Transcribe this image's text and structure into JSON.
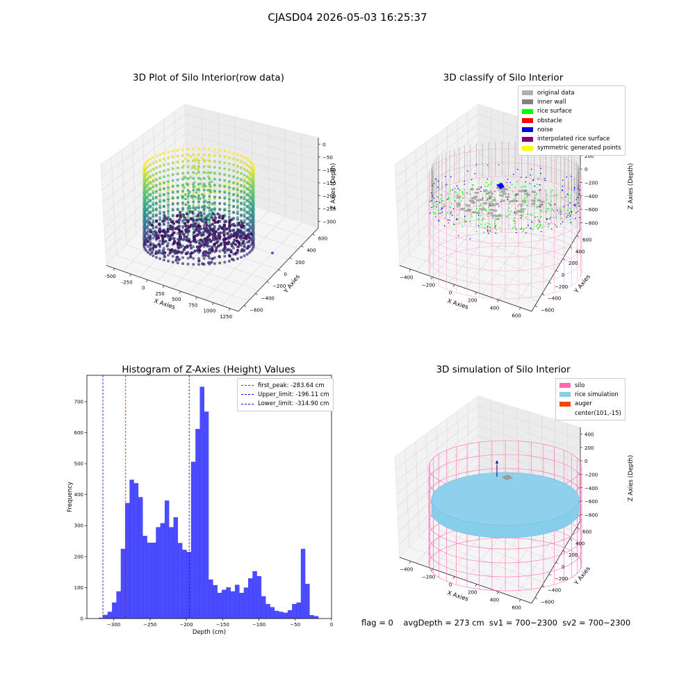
{
  "figure": {
    "suptitle": "CJASD04 2026-05-03 16:25:37",
    "footer": "flag = 0    avgDepth = 273 cm  sv1 = 700~2300  sv2 = 700~2300"
  },
  "panels": {
    "raw": {
      "title": "3D Plot of Silo Interior(row data)",
      "xlabel": "X Axies",
      "ylabel": "Y Axies",
      "zlabel": "Z Axies (Depth)",
      "xticks": [
        "-500",
        "-250",
        "0",
        "250",
        "500",
        "750",
        "1000",
        "1250"
      ],
      "yticks": [
        "600",
        "400",
        "200",
        "0",
        "−200",
        "−400",
        "−600"
      ],
      "zticks": [
        "0",
        "−50",
        "−100",
        "−150",
        "−200",
        "−250",
        "−300"
      ]
    },
    "classify": {
      "title": "3D classify of Silo Interior",
      "xlabel": "X Axies",
      "ylabel": "Y Axies",
      "zlabel": "Z Axies (Depth)",
      "xticks": [
        "−400",
        "−200",
        "0",
        "200",
        "400",
        "600"
      ],
      "yticks": [
        "600",
        "400",
        "200",
        "0",
        "−200",
        "−400",
        "−600"
      ],
      "zticks": [
        "400",
        "200",
        "0",
        "−200",
        "−400",
        "−600",
        "−800"
      ],
      "legend": [
        {
          "label": "original data",
          "color": "#b0b0b0"
        },
        {
          "label": "inner wall",
          "color": "#808080"
        },
        {
          "label": "rice surface",
          "color": "#00ff00"
        },
        {
          "label": "obstacle",
          "color": "#ff0000"
        },
        {
          "label": "noise",
          "color": "#0000ff"
        },
        {
          "label": "interpolated rice surface",
          "color": "#800080"
        },
        {
          "label": "symmetric generated points",
          "color": "#ffff00"
        }
      ]
    },
    "simulation": {
      "title": "3D simulation of Silo Interior",
      "xlabel": "X Axies",
      "ylabel": "Y Axies",
      "zlabel": "Z Axies (Depth)",
      "xticks": [
        "−400",
        "−200",
        "0",
        "200",
        "400",
        "600"
      ],
      "yticks": [
        "600",
        "400",
        "200",
        "0",
        "−200",
        "−400",
        "−600"
      ],
      "zticks": [
        "400",
        "200",
        "0",
        "−200",
        "−400",
        "−600",
        "−800"
      ],
      "legend": [
        {
          "label": "silo",
          "color": "#ff69b4"
        },
        {
          "label": "rice simulation",
          "color": "#87ceeb"
        },
        {
          "label": "auger",
          "color": "#ff4500"
        },
        {
          "label": "center(101,-15)",
          "color": ""
        }
      ]
    }
  },
  "chart_data": [
    {
      "type": "scatter",
      "title": "3D Plot of Silo Interior(row data)",
      "xlabel": "X Axies",
      "ylabel": "Y Axies",
      "zlabel": "Z Axies (Depth)",
      "xlim": [
        -600,
        1300
      ],
      "ylim": [
        -650,
        700
      ],
      "zlim": [
        -330,
        0
      ],
      "colormap": "viridis"
    },
    {
      "type": "scatter",
      "title": "3D classify of Silo Interior",
      "xlabel": "X Axies",
      "ylabel": "Y Axies",
      "zlabel": "Z Axies (Depth)",
      "series": [
        {
          "name": "original data",
          "color": "#b0b0b0"
        },
        {
          "name": "inner wall",
          "color": "#808080"
        },
        {
          "name": "rice surface",
          "color": "#00ff00"
        },
        {
          "name": "obstacle",
          "color": "#ff0000"
        },
        {
          "name": "noise",
          "color": "#0000ff"
        },
        {
          "name": "interpolated rice surface",
          "color": "#800080"
        },
        {
          "name": "symmetric generated points",
          "color": "#ffff00"
        }
      ],
      "legend": "top-right"
    },
    {
      "type": "bar",
      "title": "Histogram of Z-Axies (Height) Values",
      "xlabel": "Depth (cm)",
      "ylabel": "Frequency",
      "xlim": [
        -337,
        0
      ],
      "ylim": [
        0,
        785
      ],
      "xticks": [
        -300,
        -250,
        -200,
        -150,
        -100,
        -50,
        0
      ],
      "yticks": [
        0,
        100,
        200,
        300,
        400,
        500,
        600,
        700
      ],
      "bin_start": -320.6,
      "bin_width": 6.05,
      "values": [
        3,
        12,
        22,
        52,
        88,
        225,
        373,
        448,
        437,
        392,
        267,
        245,
        245,
        295,
        308,
        381,
        295,
        327,
        244,
        222,
        215,
        506,
        612,
        748,
        668,
        126,
        108,
        83,
        93,
        101,
        88,
        109,
        83,
        100,
        130,
        153,
        137,
        72,
        47,
        37,
        25,
        22,
        19,
        27,
        47,
        52,
        225,
        112,
        11,
        8
      ],
      "color": "#0000ff",
      "vlines": [
        {
          "label": "first_peak: -283.64 cm",
          "x": -283.64,
          "color": "#ff0000"
        },
        {
          "label": "Upper_limit: -196.11 cm",
          "x": -196.11,
          "color": "#0000ff"
        },
        {
          "label": "Lower_limit: -314.90 cm",
          "x": -314.9,
          "color": "#0000ff"
        }
      ],
      "legend": "top-right"
    },
    {
      "type": "scatter",
      "title": "3D simulation of Silo Interior",
      "xlabel": "X Axies",
      "ylabel": "Y Axies",
      "zlabel": "Z Axies (Depth)",
      "series": [
        {
          "name": "silo",
          "color": "#ff69b4"
        },
        {
          "name": "rice simulation",
          "color": "#87ceeb"
        },
        {
          "name": "auger",
          "color": "#ff4500"
        },
        {
          "name": "center(101,-15)",
          "color": ""
        }
      ],
      "legend": "top-right"
    }
  ]
}
